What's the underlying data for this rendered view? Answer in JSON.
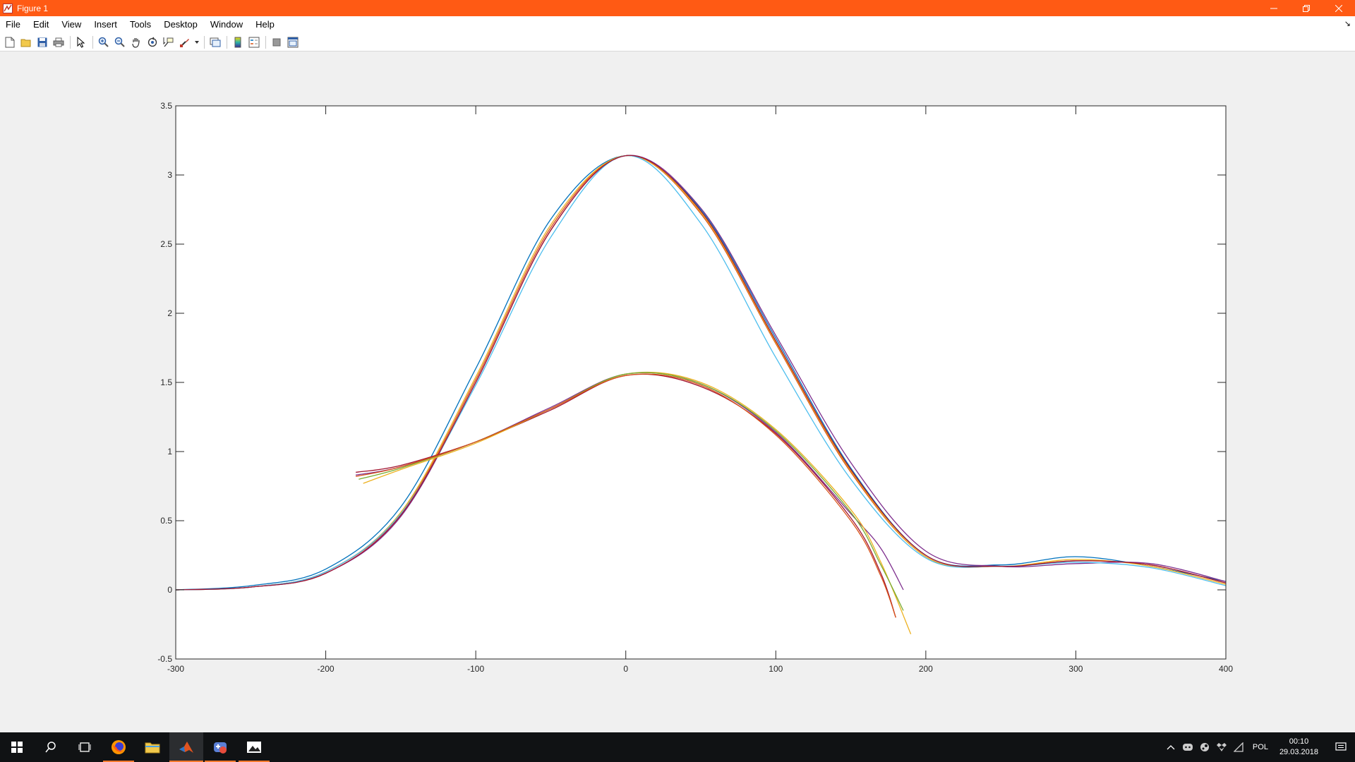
{
  "window": {
    "title": "Figure 1",
    "titlebar_color": "#ff5a14",
    "controls": [
      "minimize-icon",
      "restore-icon",
      "close-icon"
    ]
  },
  "menu": [
    "File",
    "Edit",
    "View",
    "Insert",
    "Tools",
    "Desktop",
    "Window",
    "Help"
  ],
  "toolbar": [
    "new-figure-icon",
    "open-file-icon",
    "save-icon",
    "print-icon",
    "pointer-icon",
    "zoom-in-icon",
    "zoom-out-icon",
    "pan-icon",
    "rotate-3d-icon",
    "data-cursor-icon",
    "brush-icon",
    "link-plot-icon",
    "colorbar-icon",
    "legend-icon",
    "hide-plot-tools-icon",
    "show-plot-tools-icon"
  ],
  "chart_data": {
    "type": "line",
    "title": "",
    "xlabel": "",
    "ylabel": "",
    "xlim": [
      -300,
      400
    ],
    "ylim": [
      -0.5,
      3.5
    ],
    "xticks": [
      "-300",
      "-200",
      "-100",
      "0",
      "100",
      "200",
      "300",
      "400"
    ],
    "yticks": [
      "-0.5",
      "0",
      "0.5",
      "1",
      "1.5",
      "2",
      "2.5",
      "3",
      "3.5"
    ],
    "grid": false,
    "colors": [
      "#0072BD",
      "#D95319",
      "#EDB120",
      "#7E2F8E",
      "#77AC30",
      "#4DBEEE",
      "#A2142F"
    ],
    "series": [
      {
        "color": "#0072BD",
        "x": [
          -300,
          -250,
          -200,
          -150,
          -100,
          -50,
          0,
          50,
          100,
          150,
          200,
          250,
          300,
          350,
          400
        ],
        "y": [
          0,
          0.03,
          0.15,
          0.6,
          1.6,
          2.68,
          3.14,
          2.75,
          1.82,
          0.88,
          0.25,
          0.18,
          0.24,
          0.17,
          0.06
        ]
      },
      {
        "color": "#D95319",
        "x": [
          -300,
          -250,
          -200,
          -150,
          -100,
          -50,
          0,
          50,
          100,
          150,
          200,
          250,
          300,
          350,
          400
        ],
        "y": [
          0,
          0.02,
          0.13,
          0.55,
          1.52,
          2.62,
          3.14,
          2.72,
          1.78,
          0.85,
          0.24,
          0.17,
          0.21,
          0.18,
          0.05
        ]
      },
      {
        "color": "#EDB120",
        "x": [
          -300,
          -250,
          -200,
          -150,
          -100,
          -50,
          0,
          50,
          100,
          150,
          200,
          250,
          300,
          350,
          400
        ],
        "y": [
          0,
          0.02,
          0.13,
          0.56,
          1.54,
          2.64,
          3.14,
          2.73,
          1.79,
          0.86,
          0.24,
          0.17,
          0.22,
          0.17,
          0.04
        ]
      },
      {
        "color": "#7E2F8E",
        "x": [
          -300,
          -250,
          -200,
          -150,
          -100,
          -50,
          0,
          50,
          100,
          150,
          200,
          250,
          300,
          350,
          400
        ],
        "y": [
          0,
          0.02,
          0.12,
          0.53,
          1.5,
          2.6,
          3.14,
          2.76,
          1.84,
          0.92,
          0.28,
          0.17,
          0.19,
          0.19,
          0.06
        ]
      },
      {
        "color": "#4DBEEE",
        "x": [
          -300,
          -250,
          -200,
          -150,
          -100,
          -50,
          0,
          50,
          100,
          150,
          200,
          250,
          300,
          350,
          400
        ],
        "y": [
          0,
          0.02,
          0.13,
          0.55,
          1.48,
          2.55,
          3.14,
          2.65,
          1.68,
          0.8,
          0.23,
          0.17,
          0.2,
          0.16,
          0.03
        ]
      },
      {
        "color": "#A2142F",
        "x": [
          -300,
          -250,
          -200,
          -150,
          -100,
          -50,
          0,
          50,
          100,
          150,
          200,
          250,
          300,
          350,
          400
        ],
        "y": [
          0,
          0.02,
          0.12,
          0.54,
          1.5,
          2.6,
          3.14,
          2.74,
          1.8,
          0.87,
          0.25,
          0.17,
          0.21,
          0.18,
          0.05
        ]
      },
      {
        "color": "#A2142F",
        "x": [
          -180,
          -150,
          -100,
          -50,
          0,
          50,
          100,
          150,
          170,
          180
        ],
        "y": [
          0.85,
          0.9,
          1.07,
          1.3,
          1.55,
          1.47,
          1.13,
          0.52,
          0.12,
          -0.2
        ]
      },
      {
        "color": "#7E2F8E",
        "x": [
          -180,
          -150,
          -100,
          -50,
          0,
          50,
          100,
          150,
          170,
          185
        ],
        "y": [
          0.83,
          0.89,
          1.07,
          1.32,
          1.56,
          1.49,
          1.14,
          0.55,
          0.3,
          0
        ]
      },
      {
        "color": "#EDB120",
        "x": [
          -175,
          -150,
          -100,
          -50,
          0,
          50,
          100,
          150,
          170,
          190
        ],
        "y": [
          0.77,
          0.87,
          1.06,
          1.31,
          1.56,
          1.5,
          1.16,
          0.58,
          0.2,
          -0.32
        ]
      },
      {
        "color": "#77AC30",
        "x": [
          -178,
          -150,
          -100,
          -50,
          0,
          50,
          100,
          150,
          170,
          185
        ],
        "y": [
          0.8,
          0.88,
          1.07,
          1.31,
          1.56,
          1.49,
          1.15,
          0.56,
          0.18,
          -0.15
        ]
      },
      {
        "color": "#D95319",
        "x": [
          -180,
          -150,
          -100,
          -50,
          0,
          50,
          100,
          150,
          170,
          180
        ],
        "y": [
          0.82,
          0.89,
          1.07,
          1.31,
          1.55,
          1.48,
          1.12,
          0.5,
          0.1,
          -0.2
        ]
      }
    ]
  },
  "taskbar": {
    "apps": [
      "windows-start-icon",
      "search-icon",
      "task-view-icon",
      "firefox-icon",
      "file-explorer-icon",
      "matlab-icon",
      "game-app-icon",
      "photos-icon"
    ],
    "language": "POL",
    "time": "00:10",
    "date": "29.03.2018"
  }
}
